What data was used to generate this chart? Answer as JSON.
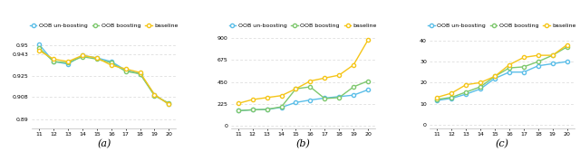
{
  "x": [
    11,
    12,
    13,
    14,
    15,
    16,
    17,
    18,
    19,
    20
  ],
  "a_oob_un": [
    0.951,
    0.937,
    0.935,
    0.942,
    0.94,
    0.937,
    0.93,
    0.927,
    0.91,
    0.902
  ],
  "a_oob": [
    0.948,
    0.937,
    0.936,
    0.941,
    0.939,
    0.936,
    0.929,
    0.927,
    0.909,
    0.903
  ],
  "a_base": [
    0.946,
    0.939,
    0.937,
    0.942,
    0.94,
    0.934,
    0.931,
    0.928,
    0.91,
    0.902
  ],
  "b_oob_un": [
    155,
    165,
    168,
    190,
    240,
    265,
    285,
    300,
    315,
    370
  ],
  "b_oob": [
    155,
    165,
    170,
    195,
    380,
    400,
    280,
    290,
    400,
    460
  ],
  "b_base": [
    230,
    270,
    290,
    310,
    380,
    460,
    490,
    520,
    625,
    880
  ],
  "c_oob_un": [
    11.5,
    12.5,
    14.5,
    17,
    22,
    25,
    25,
    28,
    29,
    30
  ],
  "c_oob": [
    12,
    13,
    15.5,
    18,
    23,
    27,
    27.5,
    30,
    33,
    37
  ],
  "c_base": [
    13,
    15,
    19,
    20,
    23,
    28.5,
    32,
    33,
    33,
    38
  ],
  "color_oob_un": "#5bbee8",
  "color_oob": "#7ec86e",
  "color_base": "#f5c518",
  "legend_labels": [
    "OOB un-boosting",
    "OOB boosting",
    "baseline"
  ],
  "a_yticks": [
    0.89,
    0.908,
    0.925,
    0.943,
    0.95
  ],
  "a_ylim": [
    0.882,
    0.961
  ],
  "b_yticks": [
    0,
    225,
    450,
    675,
    900
  ],
  "b_ylim": [
    -30,
    960
  ],
  "c_yticks": [
    0,
    10,
    20,
    30,
    40
  ],
  "c_ylim": [
    -2,
    44
  ],
  "label_a": "(a)",
  "label_b": "(b)",
  "label_c": "(c)"
}
